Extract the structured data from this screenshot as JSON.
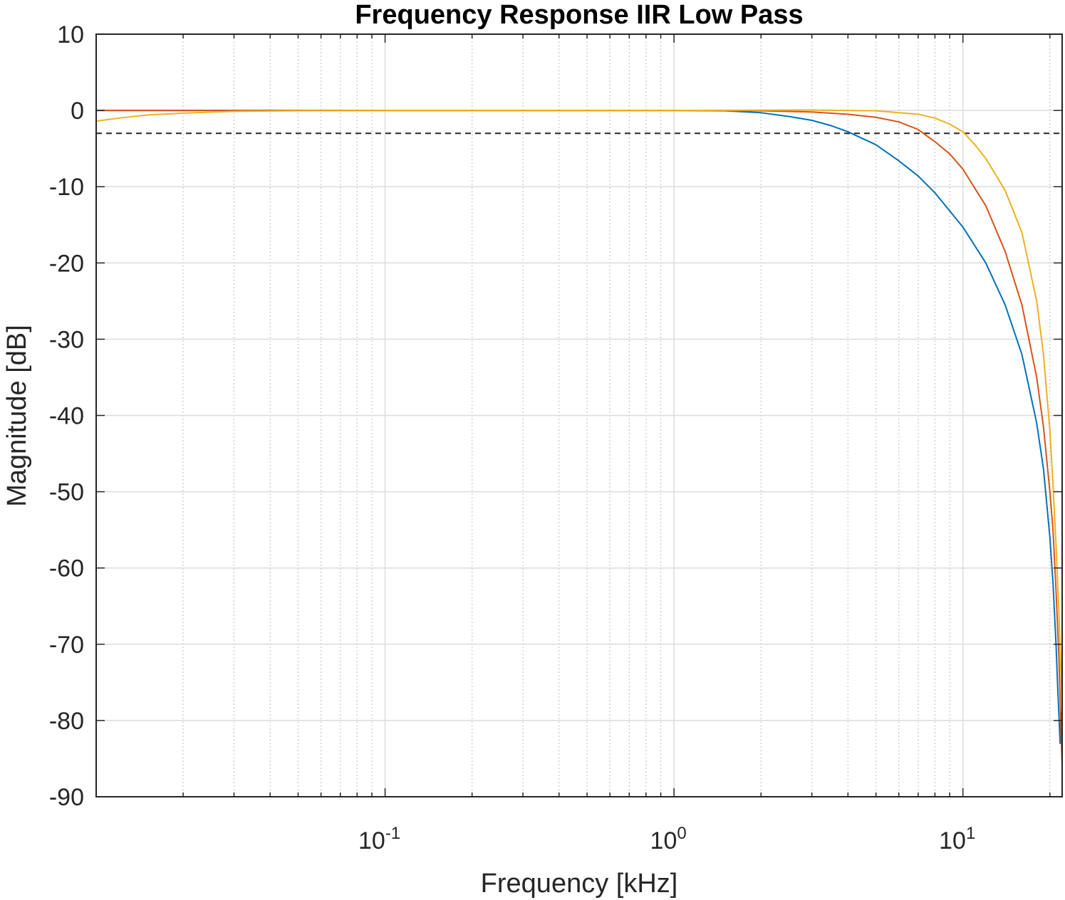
{
  "chart_data": {
    "type": "line",
    "title": "Frequency Response IIR Low Pass",
    "xlabel": "Frequency [kHz]",
    "ylabel": "Magnitude [dB]",
    "xscale": "log",
    "xlim": [
      0.01,
      22.05
    ],
    "ylim": [
      -90,
      10
    ],
    "grid": true,
    "minor_grid_x": true,
    "legend": "none",
    "x_ticks": [
      {
        "value": 0.1,
        "base": "10",
        "exp": "-1"
      },
      {
        "value": 1,
        "base": "10",
        "exp": "0"
      },
      {
        "value": 10,
        "base": "10",
        "exp": "1"
      }
    ],
    "y_ticks": [
      {
        "value": 10,
        "label": "10"
      },
      {
        "value": 0,
        "label": "0"
      },
      {
        "value": -10,
        "label": "-10"
      },
      {
        "value": -20,
        "label": "-20"
      },
      {
        "value": -30,
        "label": "-30"
      },
      {
        "value": -40,
        "label": "-40"
      },
      {
        "value": -50,
        "label": "-50"
      },
      {
        "value": -60,
        "label": "-60"
      },
      {
        "value": -70,
        "label": "-70"
      },
      {
        "value": -80,
        "label": "-80"
      },
      {
        "value": -90,
        "label": "-90"
      }
    ],
    "reference_line": {
      "y": -3,
      "style": "dashed",
      "color": "#262626"
    },
    "series": [
      {
        "color": "#0072BD",
        "points": [
          [
            1,
            0
          ],
          [
            1.5,
            -0.05
          ],
          [
            2,
            -0.3
          ],
          [
            2.5,
            -0.8
          ],
          [
            3,
            -1.3
          ],
          [
            3.5,
            -2.0
          ],
          [
            4,
            -2.8
          ],
          [
            5,
            -4.5
          ],
          [
            6,
            -6.6
          ],
          [
            7,
            -8.6
          ],
          [
            8,
            -10.8
          ],
          [
            10,
            -15.3
          ],
          [
            12,
            -20.0
          ],
          [
            14,
            -25.5
          ],
          [
            16,
            -32.0
          ],
          [
            18,
            -41.0
          ],
          [
            19,
            -47.0
          ],
          [
            20,
            -56.0
          ],
          [
            20.5,
            -62.0
          ],
          [
            21,
            -70.0
          ],
          [
            21.3,
            -76.0
          ],
          [
            21.5,
            -79.5
          ],
          [
            21.7,
            -83.0
          ],
          [
            21.85,
            -79.0
          ],
          [
            22.05,
            -81.0
          ]
        ]
      },
      {
        "color": "#D95319",
        "points": [
          [
            1,
            0
          ],
          [
            2,
            -0.05
          ],
          [
            3,
            -0.2
          ],
          [
            4,
            -0.5
          ],
          [
            5,
            -0.9
          ],
          [
            6,
            -1.5
          ],
          [
            7,
            -2.5
          ],
          [
            8,
            -4.1
          ],
          [
            9,
            -5.7
          ],
          [
            10,
            -7.7
          ],
          [
            12,
            -12.5
          ],
          [
            14,
            -18.5
          ],
          [
            16,
            -25.5
          ],
          [
            18,
            -35.0
          ],
          [
            19,
            -41.5
          ],
          [
            20,
            -50.0
          ],
          [
            20.5,
            -55.0
          ],
          [
            21,
            -63.0
          ],
          [
            21.5,
            -72.0
          ],
          [
            22.05,
            -86.0
          ]
        ]
      },
      {
        "color": "#EDB120",
        "points": [
          [
            0.01,
            -1.4
          ],
          [
            0.012,
            -1.0
          ],
          [
            0.015,
            -0.6
          ],
          [
            0.02,
            -0.35
          ],
          [
            0.03,
            -0.12
          ],
          [
            0.05,
            -0.04
          ],
          [
            0.1,
            0
          ],
          [
            1,
            0
          ],
          [
            3,
            0.05
          ],
          [
            5,
            -0.05
          ],
          [
            7,
            -0.5
          ],
          [
            8,
            -1.0
          ],
          [
            9,
            -1.8
          ],
          [
            10,
            -2.8
          ],
          [
            11,
            -4.5
          ],
          [
            12,
            -6.3
          ],
          [
            14,
            -10.5
          ],
          [
            16,
            -16.0
          ],
          [
            18,
            -25.0
          ],
          [
            19,
            -32.0
          ],
          [
            20,
            -42.0
          ],
          [
            20.5,
            -49.0
          ],
          [
            21,
            -57.0
          ],
          [
            21.5,
            -66.0
          ],
          [
            22.05,
            -78.0
          ]
        ]
      }
    ]
  }
}
